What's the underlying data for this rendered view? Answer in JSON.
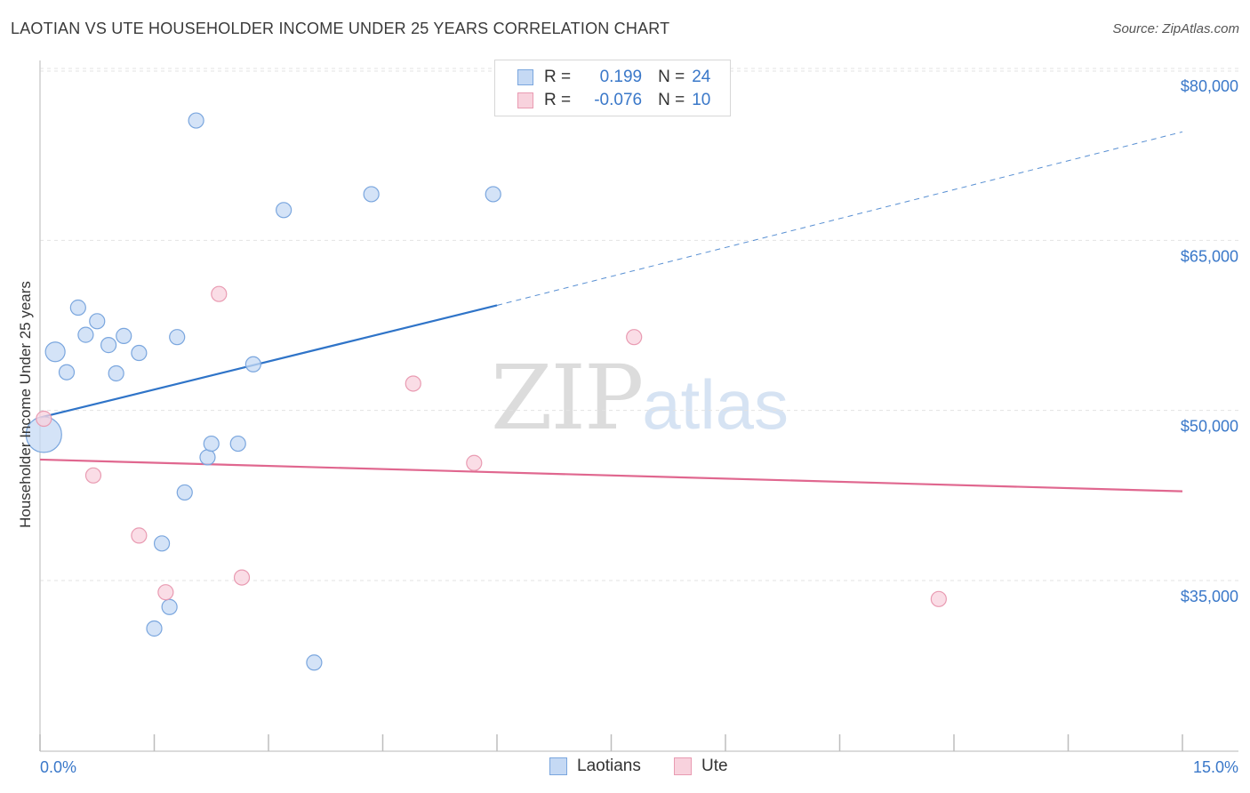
{
  "title": "LAOTIAN VS UTE HOUSEHOLDER INCOME UNDER 25 YEARS CORRELATION CHART",
  "source": "Source: ZipAtlas.com",
  "watermark": {
    "zip": "ZIP",
    "atlas": "atlas"
  },
  "colors": {
    "laotian_fill": "#c5d9f4",
    "laotian_stroke": "#7aa6de",
    "laotian_line": "#2f74c8",
    "ute_fill": "#f8d2dd",
    "ute_stroke": "#e99bb2",
    "ute_line": "#e0678f",
    "grid": "#e3e3e3",
    "tick_text": "#3a78c9"
  },
  "legend": {
    "rows": [
      {
        "r_label": "R =",
        "r_value": "0.199",
        "n_label": "N =",
        "n_value": "24"
      },
      {
        "r_label": "R =",
        "r_value": "-0.076",
        "n_label": "N =",
        "n_value": "10"
      }
    ]
  },
  "bottom_legend": {
    "laotian": "Laotians",
    "ute": "Ute"
  },
  "chart_data": {
    "type": "scatter",
    "title": "LAOTIAN VS UTE HOUSEHOLDER INCOME UNDER 25 YEARS CORRELATION CHART",
    "xlabel": "",
    "ylabel": "Householder Income Under 25 years",
    "xlim": [
      0,
      15
    ],
    "ylim": [
      20000,
      82000
    ],
    "x_tick_labels": [
      "0.0%",
      "15.0%"
    ],
    "y_ticks": [
      35000,
      50000,
      65000,
      80000
    ],
    "y_tick_labels": [
      "$35,000",
      "$50,000",
      "$65,000",
      "$80,000"
    ],
    "grid": true,
    "legend_position": "top-center",
    "series": [
      {
        "name": "Laotians",
        "points": [
          {
            "x": 0.05,
            "y": 49200,
            "big": true
          },
          {
            "x": 0.2,
            "y": 56500,
            "big": true
          },
          {
            "x": 0.35,
            "y": 54700
          },
          {
            "x": 0.5,
            "y": 60400
          },
          {
            "x": 0.6,
            "y": 58000
          },
          {
            "x": 0.75,
            "y": 59200
          },
          {
            "x": 0.9,
            "y": 57100
          },
          {
            "x": 1.0,
            "y": 54600
          },
          {
            "x": 1.1,
            "y": 57900
          },
          {
            "x": 1.3,
            "y": 56400
          },
          {
            "x": 1.6,
            "y": 39600
          },
          {
            "x": 1.5,
            "y": 32100
          },
          {
            "x": 1.7,
            "y": 34000
          },
          {
            "x": 1.8,
            "y": 57800
          },
          {
            "x": 1.9,
            "y": 44100
          },
          {
            "x": 2.05,
            "y": 76900
          },
          {
            "x": 2.2,
            "y": 47200
          },
          {
            "x": 2.25,
            "y": 48400
          },
          {
            "x": 2.6,
            "y": 48400
          },
          {
            "x": 2.8,
            "y": 55400
          },
          {
            "x": 3.2,
            "y": 69000
          },
          {
            "x": 3.6,
            "y": 29100
          },
          {
            "x": 4.35,
            "y": 70400
          },
          {
            "x": 5.95,
            "y": 70400
          }
        ],
        "trend": {
          "x0": 0,
          "y0": 50700,
          "x1": 6.0,
          "y1": 60600,
          "dash_x1": 15,
          "dash_y1": 75900
        }
      },
      {
        "name": "Ute",
        "points": [
          {
            "x": 0.05,
            "y": 50600
          },
          {
            "x": 0.7,
            "y": 45600
          },
          {
            "x": 1.3,
            "y": 40300
          },
          {
            "x": 1.65,
            "y": 35300
          },
          {
            "x": 2.35,
            "y": 61600
          },
          {
            "x": 2.65,
            "y": 36600
          },
          {
            "x": 4.9,
            "y": 53700
          },
          {
            "x": 5.7,
            "y": 46700
          },
          {
            "x": 7.8,
            "y": 57800
          },
          {
            "x": 11.8,
            "y": 34700
          }
        ],
        "trend": {
          "x0": 0,
          "y0": 47000,
          "x1": 15,
          "y1": 44200
        }
      }
    ]
  }
}
